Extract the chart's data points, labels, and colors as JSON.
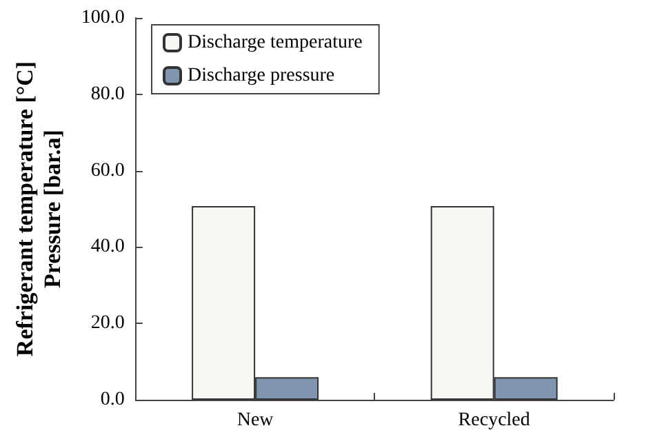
{
  "chart_data": {
    "type": "bar",
    "ylabel": "Refrigerant temperature [°C]\nPressure [bar.a]",
    "categories": [
      "New",
      "Recycled"
    ],
    "series": [
      {
        "name": "Discharge temperature",
        "color": "#f7f7f3",
        "values": [
          50.7,
          50.7
        ]
      },
      {
        "name": "Discharge pressure",
        "color": "#8096b0",
        "values": [
          5.9,
          5.9
        ]
      }
    ],
    "ylim": [
      0,
      100
    ],
    "yticks": [
      {
        "value": 0,
        "label": "0.0"
      },
      {
        "value": 20,
        "label": "20.0"
      },
      {
        "value": 40,
        "label": "40.0"
      },
      {
        "value": 60,
        "label": "60.0"
      },
      {
        "value": 80,
        "label": "80.0"
      },
      {
        "value": 100,
        "label": "100.0"
      }
    ],
    "grid": false,
    "legend": "top left"
  }
}
